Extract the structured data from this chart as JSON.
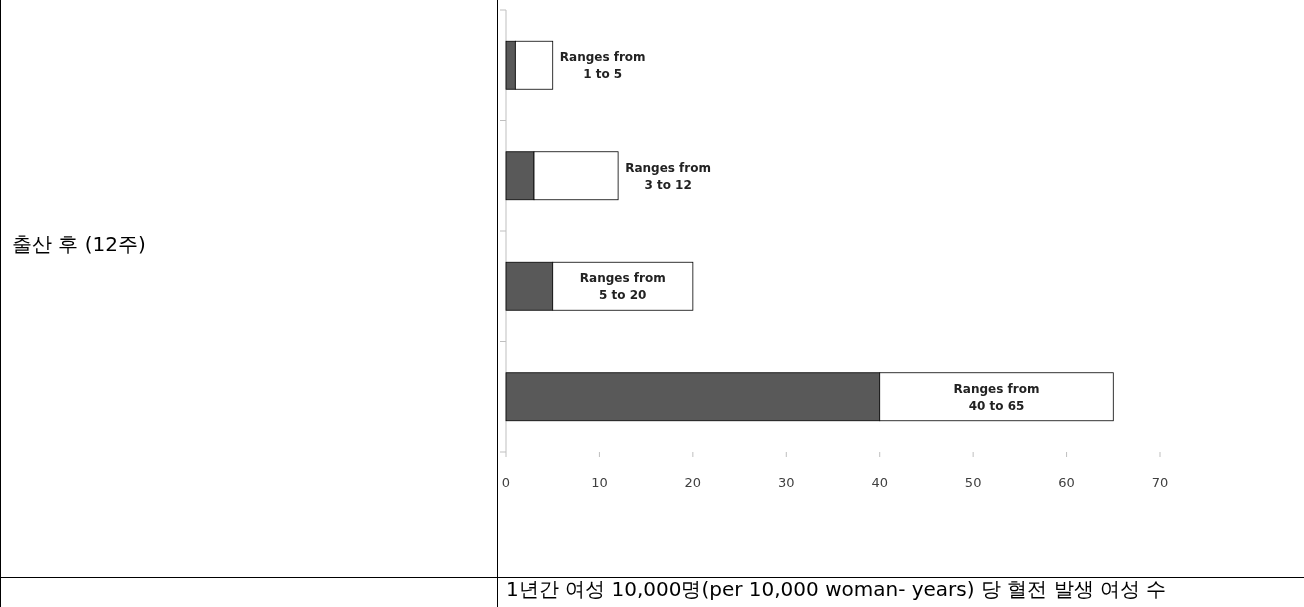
{
  "chart_data": {
    "type": "bar",
    "orientation": "horizontal",
    "stacked": true,
    "annotations": [
      "출산 후 (12주)"
    ],
    "xlabel": "1년간 여성 10,000명(per 10,000 woman- years) 당 혈전 발생 여성 수",
    "categories": [
      null,
      null,
      null,
      null
    ],
    "series": [
      {
        "color": "#595959",
        "values": [
          1,
          3,
          5,
          40
        ]
      },
      {
        "color": "#ffffff",
        "values": [
          4,
          9,
          15,
          25
        ],
        "value_labels": [
          "Ranges from\n1 to 5",
          "Ranges from\n3 to 12",
          "Ranges from\n5 to 20",
          "Ranges from\n40 to 65"
        ]
      }
    ],
    "xlim": [
      0,
      70
    ],
    "xticks": [
      0,
      10,
      20,
      30,
      40,
      50,
      60,
      70
    ],
    "tick_labels": "x",
    "grid": false
  }
}
